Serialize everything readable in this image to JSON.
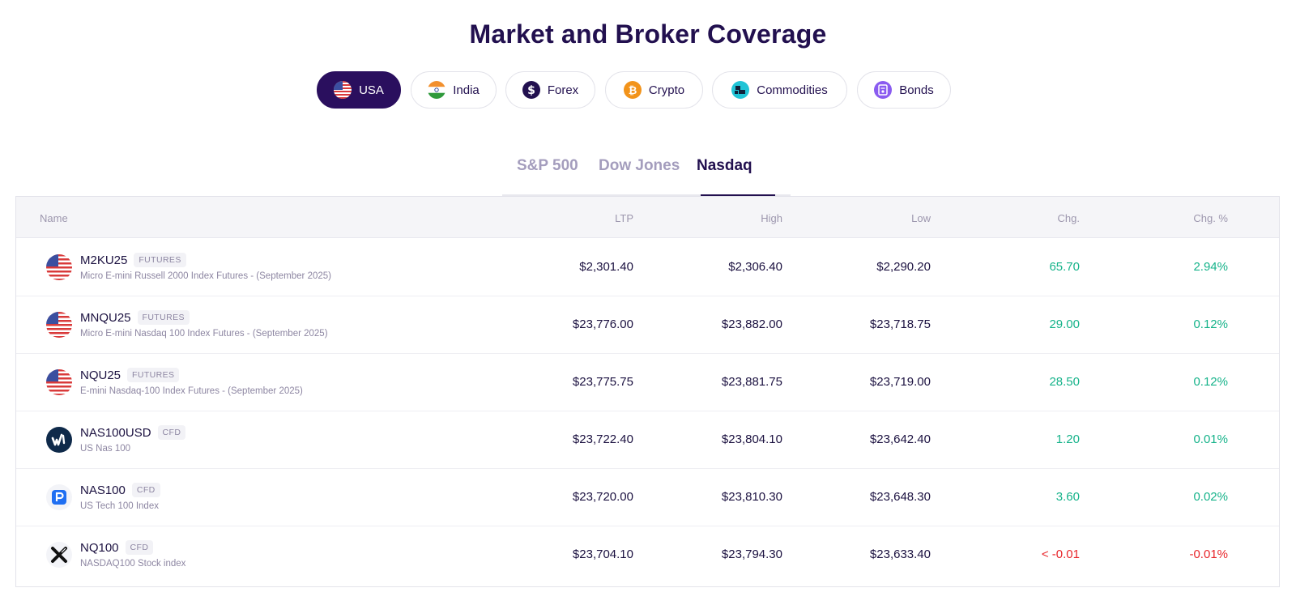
{
  "page_title": "Market and Broker Coverage",
  "market_tabs": [
    {
      "label": "USA",
      "icon": "us-flag-icon",
      "active": true
    },
    {
      "label": "India",
      "icon": "india-flag-icon",
      "active": false
    },
    {
      "label": "Forex",
      "icon": "dollar-icon",
      "active": false
    },
    {
      "label": "Crypto",
      "icon": "bitcoin-icon",
      "active": false
    },
    {
      "label": "Commodities",
      "icon": "commodities-icon",
      "active": false
    },
    {
      "label": "Bonds",
      "icon": "bonds-icon",
      "active": false
    }
  ],
  "index_tabs": [
    {
      "label": "S&P 500",
      "active": false
    },
    {
      "label": "Dow Jones",
      "active": false
    },
    {
      "label": "Nasdaq",
      "active": true
    }
  ],
  "table": {
    "headers": {
      "name": "Name",
      "ltp": "LTP",
      "high": "High",
      "low": "Low",
      "chg": "Chg.",
      "chg_pct": "Chg. %"
    },
    "rows": [
      {
        "symbol": "M2KU25",
        "badge": "FUTURES",
        "description": "Micro E-mini Russell 2000 Index Futures - (September 2025)",
        "icon": "us-flag-icon",
        "ltp": "$2,301.40",
        "high": "$2,306.40",
        "low": "$2,290.20",
        "chg": "65.70",
        "chg_pct": "2.94%",
        "direction": "up"
      },
      {
        "symbol": "MNQU25",
        "badge": "FUTURES",
        "description": "Micro E-mini Nasdaq 100 Index Futures - (September 2025)",
        "icon": "us-flag-icon",
        "ltp": "$23,776.00",
        "high": "$23,882.00",
        "low": "$23,718.75",
        "chg": "29.00",
        "chg_pct": "0.12%",
        "direction": "up"
      },
      {
        "symbol": "NQU25",
        "badge": "FUTURES",
        "description": "E-mini Nasdaq-100 Index Futures - (September 2025)",
        "icon": "us-flag-icon",
        "ltp": "$23,775.75",
        "high": "$23,881.75",
        "low": "$23,719.00",
        "chg": "28.50",
        "chg_pct": "0.12%",
        "direction": "up"
      },
      {
        "symbol": "NAS100USD",
        "badge": "CFD",
        "description": "US Nas 100",
        "icon": "oanda-logo-icon",
        "ltp": "$23,722.40",
        "high": "$23,804.10",
        "low": "$23,642.40",
        "chg": "1.20",
        "chg_pct": "0.01%",
        "direction": "up"
      },
      {
        "symbol": "NAS100",
        "badge": "CFD",
        "description": "US Tech 100 Index",
        "icon": "pepperstone-logo-icon",
        "ltp": "$23,720.00",
        "high": "$23,810.30",
        "low": "$23,648.30",
        "chg": "3.60",
        "chg_pct": "0.02%",
        "direction": "up"
      },
      {
        "symbol": "NQ100",
        "badge": "CFD",
        "description": "NASDAQ100 Stock index",
        "icon": "xtb-logo-icon",
        "ltp": "$23,704.10",
        "high": "$23,794.30",
        "low": "$23,633.40",
        "chg": "< -0.01",
        "chg_pct": "-0.01%",
        "direction": "down"
      }
    ]
  },
  "colors": {
    "accent": "#2a0f5e",
    "positive": "#16b38a",
    "negative": "#e8262b"
  }
}
